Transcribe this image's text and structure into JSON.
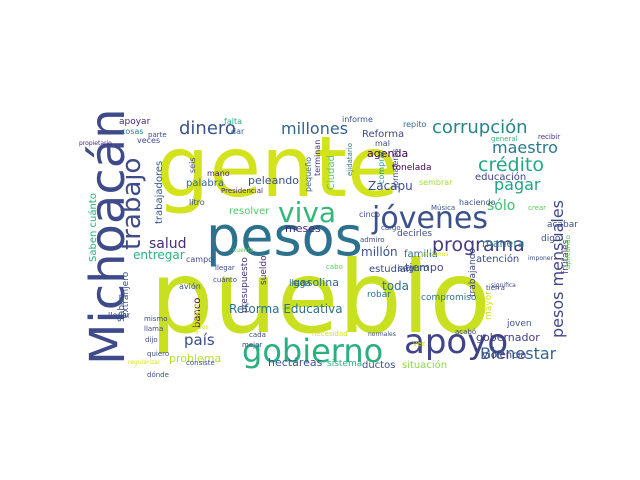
{
  "words": [
    {
      "text": "pueblo",
      "color": "#c8e020"
    },
    {
      "text": "gente",
      "color": "#d2e21b"
    },
    {
      "text": "Michoacán",
      "color": "#3e4a89"
    },
    {
      "text": "pesos",
      "color": "#2c728e"
    },
    {
      "text": "jóvenes",
      "color": "#3b518b"
    },
    {
      "text": "gobierno",
      "color": "#2ab07f"
    },
    {
      "text": "apoyo",
      "color": "#404387"
    },
    {
      "text": "viva",
      "color": "#35b779"
    },
    {
      "text": "trabajo",
      "color": "#3e4c8a"
    },
    {
      "text": "programa",
      "color": "#443983"
    },
    {
      "text": "corrupción",
      "color": "#25858e"
    },
    {
      "text": "crédito",
      "color": "#22a884"
    },
    {
      "text": "dinero",
      "color": "#3b528b"
    },
    {
      "text": "millones",
      "color": "#33638d"
    },
    {
      "text": "maestro",
      "color": "#2a788e"
    },
    {
      "text": "pagar",
      "color": "#20a386"
    },
    {
      "text": "sólo",
      "color": "#3dbc74"
    },
    {
      "text": "pesos mensuales",
      "color": "#404688"
    },
    {
      "text": "Bienestar",
      "color": "#33638d"
    },
    {
      "text": "país",
      "color": "#3d4d8a"
    },
    {
      "text": "salud",
      "color": "#472c7a"
    },
    {
      "text": "Reforma Educativa",
      "color": "#2d708e"
    },
    {
      "text": "entregar",
      "color": "#2ab07f"
    },
    {
      "text": "agenda",
      "color": "#440154"
    },
    {
      "text": "Zacapu",
      "color": "#3b518b"
    },
    {
      "text": "tiempo",
      "color": "#3f4788"
    },
    {
      "text": "toda",
      "color": "#2c728e"
    },
    {
      "text": "millón",
      "color": "#3b528b"
    },
    {
      "text": "familia",
      "color": "#2e6f8e"
    },
    {
      "text": "estudian",
      "color": "#3e4989"
    },
    {
      "text": "atención",
      "color": "#3e4989"
    },
    {
      "text": "gobernador",
      "color": "#433e85"
    },
    {
      "text": "violencia",
      "color": "#453581"
    },
    {
      "text": "manera",
      "color": "#25848e"
    },
    {
      "text": "educación",
      "color": "#433e85"
    },
    {
      "text": "tonelada",
      "color": "#440154"
    },
    {
      "text": "Reforma",
      "color": "#3f4788"
    },
    {
      "text": "compromiso",
      "color": "#2d708e"
    },
    {
      "text": "gasolina",
      "color": "#2f6c8e"
    },
    {
      "text": "hectáreas",
      "color": "#3b528b"
    },
    {
      "text": "sistema",
      "color": "#2db27d"
    },
    {
      "text": "ductos",
      "color": "#3e4c8a"
    },
    {
      "text": "situación",
      "color": "#8fd744"
    },
    {
      "text": "problema",
      "color": "#b5de2b"
    },
    {
      "text": "banco",
      "color": "#440154"
    },
    {
      "text": "peleando",
      "color": "#3b518b"
    },
    {
      "text": "resolver",
      "color": "#52c569"
    },
    {
      "text": "Ciudad",
      "color": "#5ec962"
    },
    {
      "text": "palabra",
      "color": "#31688e"
    },
    {
      "text": "meses",
      "color": "#482677"
    },
    {
      "text": "trabajadores",
      "color": "#38598c"
    },
    {
      "text": "Saben cuánto",
      "color": "#29af7f"
    },
    {
      "text": "extranjero",
      "color": "#3b528b"
    },
    {
      "text": "Saben",
      "color": "#3b528b"
    },
    {
      "text": "presupuesto",
      "color": "#46327e"
    },
    {
      "text": "sueldo",
      "color": "#46327e"
    },
    {
      "text": "llega",
      "color": "#2e6e8e"
    },
    {
      "text": "robar",
      "color": "#2c728e"
    },
    {
      "text": "joven",
      "color": "#3b528b"
    },
    {
      "text": "trabajando",
      "color": "#3e4c8a"
    },
    {
      "text": "mayor",
      "color": "#d8e219"
    },
    {
      "text": "frutales",
      "color": "#443983"
    },
    {
      "text": "digo",
      "color": "#3e4c8a"
    },
    {
      "text": "acabar",
      "color": "#3b528b"
    },
    {
      "text": "decirles",
      "color": "#3e4c8a"
    },
    {
      "text": "seguro",
      "color": "#38598c"
    },
    {
      "text": "apoyar",
      "color": "#482475"
    },
    {
      "text": "cosas",
      "color": "#29798e"
    },
    {
      "text": "falta",
      "color": "#29af7f"
    },
    {
      "text": "dar",
      "color": "#2c728e"
    },
    {
      "text": "informe",
      "color": "#3b528b"
    },
    {
      "text": "repito",
      "color": "#2e6e8e"
    },
    {
      "text": "terminan",
      "color": "#453581"
    },
    {
      "text": "pequeño",
      "color": "#35608d"
    },
    {
      "text": "mal",
      "color": "#3e4c8a"
    },
    {
      "text": "jornaleros",
      "color": "#3e4c8a"
    },
    {
      "text": "comprar",
      "color": "#1fa287"
    },
    {
      "text": "cinco",
      "color": "#3e4989"
    },
    {
      "text": "sembrar",
      "color": "#a2da37"
    },
    {
      "text": "Música",
      "color": "#3b528b"
    },
    {
      "text": "haciendo",
      "color": "#3b528b"
    },
    {
      "text": "crear",
      "color": "#5ec962"
    },
    {
      "text": "general",
      "color": "#35b779"
    },
    {
      "text": "recibir",
      "color": "#46327e"
    },
    {
      "text": "veces",
      "color": "#3e4c8a"
    },
    {
      "text": "parte",
      "color": "#3e4c8a"
    },
    {
      "text": "seis",
      "color": "#3e4c8a"
    },
    {
      "text": "mano",
      "color": "#482475"
    },
    {
      "text": "litro",
      "color": "#3b528b"
    },
    {
      "text": "campo",
      "color": "#3e4c8a"
    },
    {
      "text": "avión",
      "color": "#3e4c8a"
    },
    {
      "text": "llevar",
      "color": "#3e4c8a"
    },
    {
      "text": "mismo",
      "color": "#3e4c8a"
    },
    {
      "text": "llama",
      "color": "#3e4c8a"
    },
    {
      "text": "dijo",
      "color": "#3e4c8a"
    },
    {
      "text": "quiero",
      "color": "#3e4c8a"
    },
    {
      "text": "dónde",
      "color": "#3e4c8a"
    },
    {
      "text": "mejor",
      "color": "#3e4c8a"
    },
    {
      "text": "consiste",
      "color": "#3e4c8a"
    },
    {
      "text": "cada",
      "color": "#3e4c8a"
    },
    {
      "text": "llegar",
      "color": "#3e4c8a"
    },
    {
      "text": "cuánto",
      "color": "#3e4c8a"
    },
    {
      "text": "cabo",
      "color": "#5ec962"
    },
    {
      "text": "admiro",
      "color": "#3e4c8a"
    },
    {
      "text": "cargo",
      "color": "#3e4c8a"
    },
    {
      "text": "tierra",
      "color": "#3e4c8a"
    },
    {
      "text": "aplicando",
      "color": "#5ec962"
    },
    {
      "text": "necesidad",
      "color": "#d8e219"
    },
    {
      "text": "normales",
      "color": "#3e4c8a"
    },
    {
      "text": "vez",
      "color": "#d8e219"
    },
    {
      "text": "acabó",
      "color": "#3e4c8a"
    },
    {
      "text": "significa",
      "color": "#3e4c8a"
    },
    {
      "text": "imponer",
      "color": "#3e4c8a"
    },
    {
      "text": "ejidatario",
      "color": "#2c728e"
    },
    {
      "text": "Presidencial",
      "color": "#482677"
    },
    {
      "text": "abandono",
      "color": "#d8e219"
    },
    {
      "text": "propietario",
      "color": "#482475"
    },
    {
      "text": "regularizar",
      "color": "#d8e219"
    },
    {
      "text": "personas",
      "color": "#d8e219"
    },
    {
      "text": "lienzos",
      "color": "#d8e219"
    },
    {
      "text": "cuenta",
      "color": "#5ec962"
    }
  ]
}
